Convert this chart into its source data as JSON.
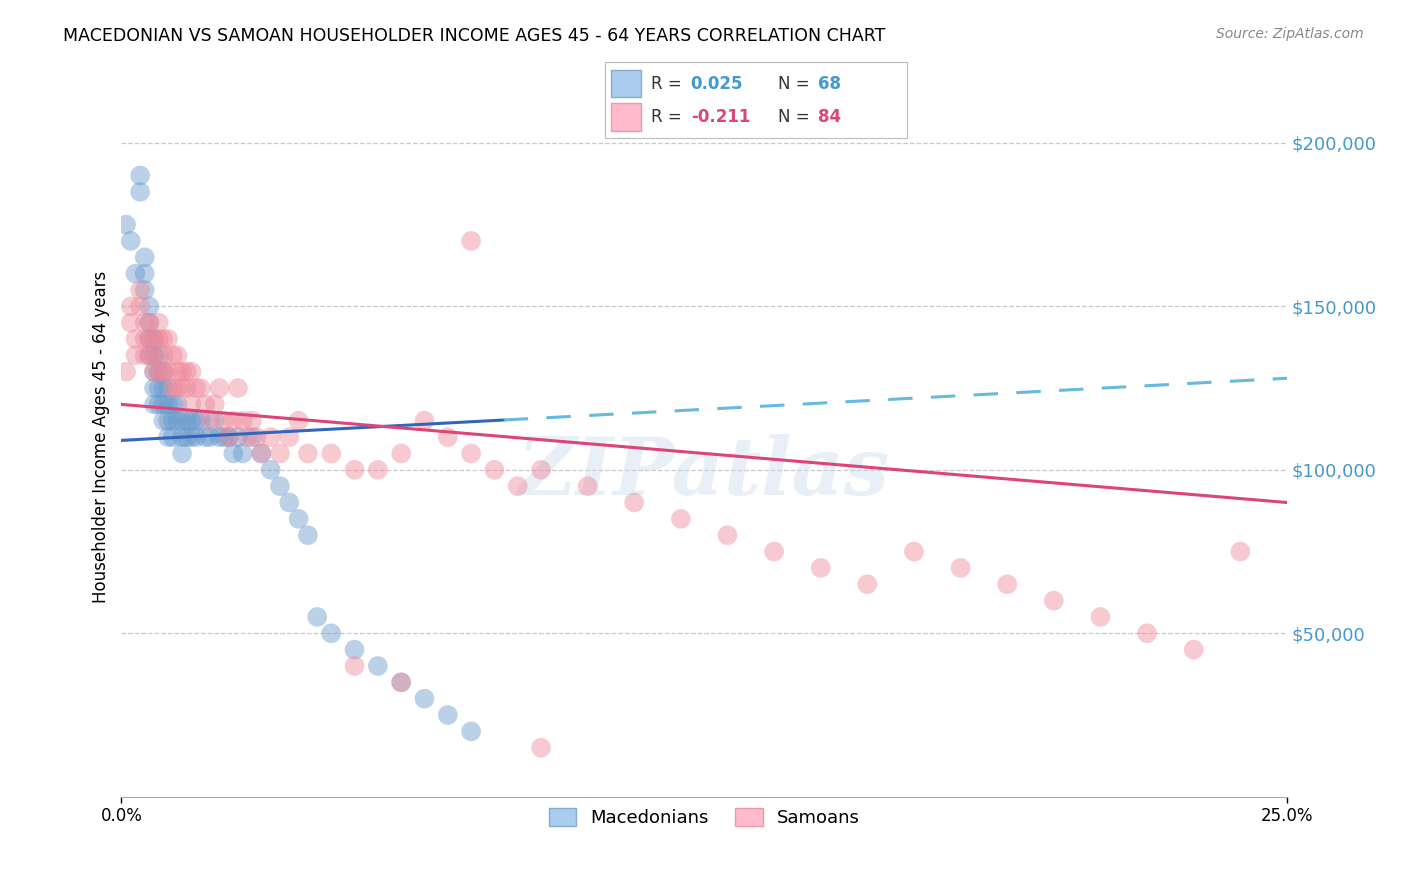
{
  "title": "MACEDONIAN VS SAMOAN HOUSEHOLDER INCOME AGES 45 - 64 YEARS CORRELATION CHART",
  "source": "Source: ZipAtlas.com",
  "ylabel": "Householder Income Ages 45 - 64 years",
  "watermark": "ZIPatlas",
  "legend_macedonian": "Macedonians",
  "legend_samoan": "Samoans",
  "R_mac": 0.025,
  "N_mac": 68,
  "R_sam": -0.211,
  "N_sam": 84,
  "xlim": [
    0.0,
    0.25
  ],
  "ylim": [
    0,
    220000
  ],
  "blue_dot": "#6699cc",
  "pink_dot": "#ee8899",
  "trend_blue_solid": "#3366bb",
  "trend_blue_dash": "#66bbdd",
  "trend_pink": "#dd4477",
  "ytick_color": "#4499cc",
  "mac_x": [
    0.001,
    0.002,
    0.003,
    0.004,
    0.004,
    0.005,
    0.005,
    0.005,
    0.006,
    0.006,
    0.006,
    0.006,
    0.007,
    0.007,
    0.007,
    0.007,
    0.007,
    0.008,
    0.008,
    0.008,
    0.008,
    0.009,
    0.009,
    0.009,
    0.009,
    0.01,
    0.01,
    0.01,
    0.01,
    0.011,
    0.011,
    0.011,
    0.012,
    0.012,
    0.013,
    0.013,
    0.013,
    0.014,
    0.014,
    0.015,
    0.015,
    0.016,
    0.016,
    0.017,
    0.018,
    0.019,
    0.02,
    0.021,
    0.022,
    0.023,
    0.024,
    0.025,
    0.026,
    0.028,
    0.03,
    0.032,
    0.034,
    0.036,
    0.038,
    0.04,
    0.042,
    0.045,
    0.05,
    0.055,
    0.06,
    0.065,
    0.07,
    0.075
  ],
  "mac_y": [
    175000,
    170000,
    160000,
    190000,
    185000,
    165000,
    160000,
    155000,
    150000,
    145000,
    140000,
    135000,
    140000,
    135000,
    130000,
    125000,
    120000,
    135000,
    130000,
    125000,
    120000,
    130000,
    125000,
    120000,
    115000,
    125000,
    120000,
    115000,
    110000,
    120000,
    115000,
    110000,
    120000,
    115000,
    115000,
    110000,
    105000,
    115000,
    110000,
    115000,
    110000,
    115000,
    110000,
    115000,
    110000,
    110000,
    115000,
    110000,
    110000,
    110000,
    105000,
    110000,
    105000,
    110000,
    105000,
    100000,
    95000,
    90000,
    85000,
    80000,
    55000,
    50000,
    45000,
    40000,
    35000,
    30000,
    25000,
    20000
  ],
  "sam_x": [
    0.001,
    0.002,
    0.002,
    0.003,
    0.003,
    0.004,
    0.004,
    0.005,
    0.005,
    0.005,
    0.006,
    0.006,
    0.006,
    0.007,
    0.007,
    0.007,
    0.008,
    0.008,
    0.008,
    0.009,
    0.009,
    0.009,
    0.01,
    0.01,
    0.011,
    0.011,
    0.012,
    0.012,
    0.012,
    0.013,
    0.013,
    0.014,
    0.014,
    0.015,
    0.015,
    0.016,
    0.017,
    0.018,
    0.019,
    0.02,
    0.021,
    0.022,
    0.023,
    0.024,
    0.025,
    0.026,
    0.027,
    0.028,
    0.029,
    0.03,
    0.032,
    0.034,
    0.036,
    0.038,
    0.04,
    0.045,
    0.05,
    0.055,
    0.06,
    0.065,
    0.07,
    0.075,
    0.08,
    0.085,
    0.09,
    0.1,
    0.11,
    0.12,
    0.13,
    0.14,
    0.15,
    0.16,
    0.17,
    0.18,
    0.19,
    0.2,
    0.21,
    0.22,
    0.23,
    0.24,
    0.05,
    0.06,
    0.075,
    0.09
  ],
  "sam_y": [
    130000,
    145000,
    150000,
    140000,
    135000,
    150000,
    155000,
    140000,
    135000,
    145000,
    145000,
    140000,
    135000,
    140000,
    135000,
    130000,
    145000,
    140000,
    130000,
    140000,
    135000,
    130000,
    140000,
    130000,
    135000,
    125000,
    135000,
    130000,
    125000,
    130000,
    125000,
    130000,
    125000,
    130000,
    120000,
    125000,
    125000,
    120000,
    115000,
    120000,
    125000,
    115000,
    110000,
    115000,
    125000,
    115000,
    110000,
    115000,
    110000,
    105000,
    110000,
    105000,
    110000,
    115000,
    105000,
    105000,
    100000,
    100000,
    105000,
    115000,
    110000,
    105000,
    100000,
    95000,
    100000,
    95000,
    90000,
    85000,
    80000,
    75000,
    70000,
    65000,
    75000,
    70000,
    65000,
    60000,
    55000,
    50000,
    45000,
    75000,
    40000,
    35000,
    170000,
    15000
  ]
}
